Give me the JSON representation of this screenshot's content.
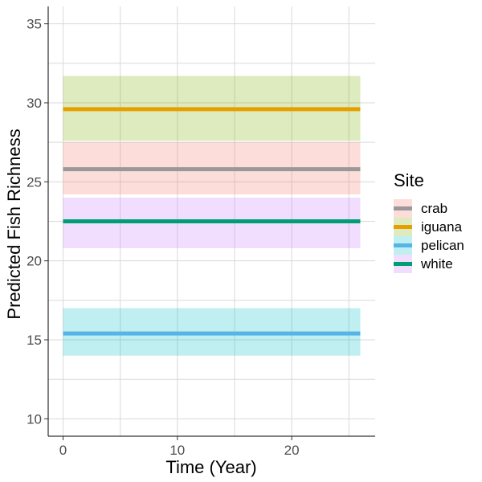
{
  "chart_data": {
    "type": "line",
    "xlabel": "Time (Year)",
    "ylabel": "Predicted Fish Richness",
    "xlim": [
      -1.3,
      27.3
    ],
    "ylim": [
      8.9,
      36.1
    ],
    "x_ticks": [
      0,
      10,
      20
    ],
    "y_ticks": [
      10,
      15,
      20,
      25,
      30,
      35
    ],
    "grid": true,
    "legend": {
      "title": "Site",
      "position": "right"
    },
    "series": [
      {
        "name": "crab",
        "color": "#999999",
        "band_color": "#F8766D",
        "x": [
          0,
          26
        ],
        "y": [
          25.8,
          25.8
        ],
        "lower": [
          24.2,
          24.2
        ],
        "upper": [
          27.5,
          27.5
        ]
      },
      {
        "name": "iguana",
        "color": "#E69F00",
        "band_color": "#7CAE00",
        "x": [
          0,
          26
        ],
        "y": [
          29.6,
          29.6
        ],
        "lower": [
          27.6,
          27.6
        ],
        "upper": [
          31.7,
          31.7
        ]
      },
      {
        "name": "pelican",
        "color": "#56B4E9",
        "band_color": "#00BFC4",
        "x": [
          0,
          26
        ],
        "y": [
          15.4,
          15.4
        ],
        "lower": [
          14.0,
          14.0
        ],
        "upper": [
          17.0,
          17.0
        ]
      },
      {
        "name": "white",
        "color": "#009E73",
        "band_color": "#C77CFF",
        "x": [
          0,
          26
        ],
        "y": [
          22.5,
          22.5
        ],
        "lower": [
          20.8,
          20.8
        ],
        "upper": [
          24.0,
          24.0
        ]
      }
    ]
  }
}
